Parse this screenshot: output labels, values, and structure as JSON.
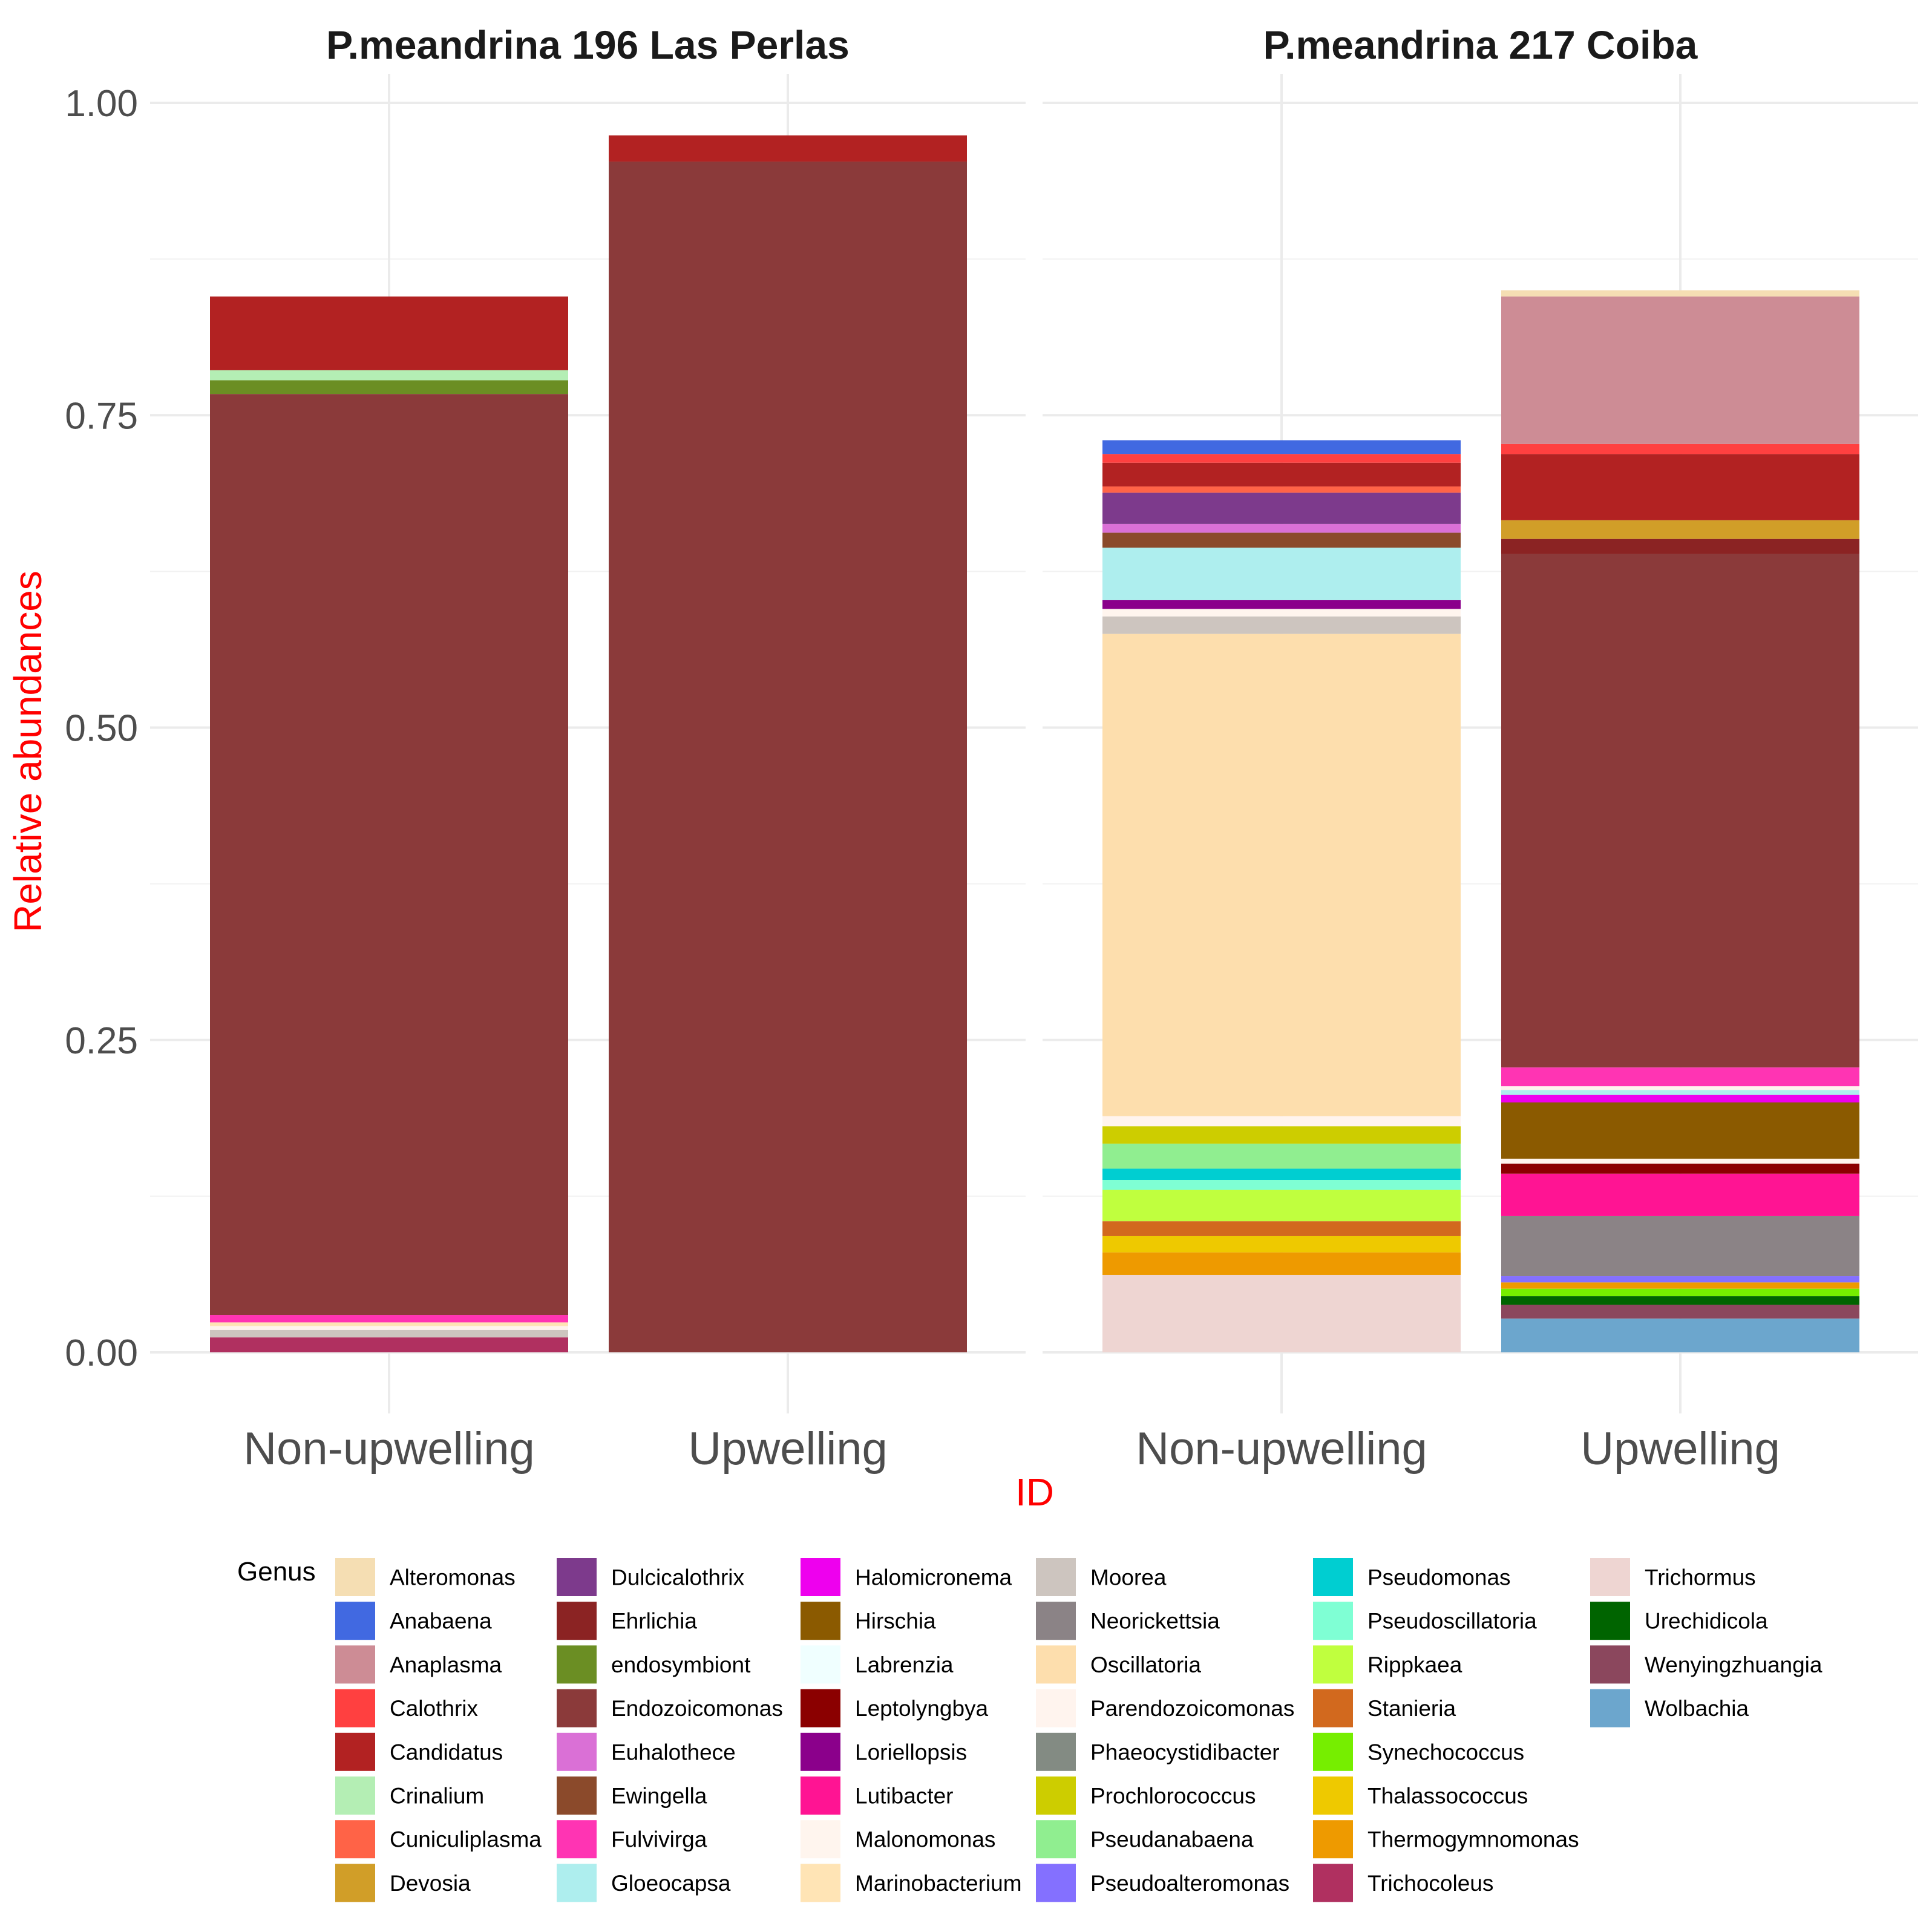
{
  "chart_data": {
    "type": "bar",
    "stacked": true,
    "ylabel": "Relative abundances",
    "xlabel": "ID",
    "ylim": [
      0,
      1.0
    ],
    "yticks": [
      "0.00",
      "0.25",
      "0.50",
      "0.75",
      "1.00"
    ],
    "categories": [
      "Non-upwelling",
      "Upwelling"
    ],
    "grid": true,
    "legend_position": "bottom",
    "legend_title": "Genus",
    "facets": [
      {
        "title": "P.meandrina 196 Las Perlas",
        "bars": [
          {
            "category": "Non-upwelling",
            "segments": [
              {
                "genus": "Trichocoleus",
                "value": 0.012
              },
              {
                "genus": "Moorea",
                "value": 0.006
              },
              {
                "genus": "Parendozoicomonas",
                "value": 0.003
              },
              {
                "genus": "Marinobacterium",
                "value": 0.003
              },
              {
                "genus": "Fulvivirga",
                "value": 0.006
              },
              {
                "genus": "Endozoicomonas",
                "value": 0.737
              },
              {
                "genus": "endosymbiont",
                "value": 0.011
              },
              {
                "genus": "Crinalium",
                "value": 0.008
              },
              {
                "genus": "Candidatus",
                "value": 0.059
              }
            ]
          },
          {
            "category": "Upwelling",
            "segments": [
              {
                "genus": "Endozoicomonas",
                "value": 0.953
              },
              {
                "genus": "Candidatus",
                "value": 0.021
              }
            ]
          }
        ]
      },
      {
        "title": "P.meandrina 217 Coiba",
        "bars": [
          {
            "category": "Non-upwelling",
            "segments": [
              {
                "genus": "Trichormus",
                "value": 0.062
              },
              {
                "genus": "Thermogymnomonas",
                "value": 0.018
              },
              {
                "genus": "Thalassococcus",
                "value": 0.013
              },
              {
                "genus": "Stanieria",
                "value": 0.012
              },
              {
                "genus": "Rippkaea",
                "value": 0.025
              },
              {
                "genus": "Pseudoscillatoria",
                "value": 0.008
              },
              {
                "genus": "Pseudomonas",
                "value": 0.009
              },
              {
                "genus": "Pseudanabaena",
                "value": 0.02
              },
              {
                "genus": "Prochlorococcus",
                "value": 0.014
              },
              {
                "genus": "Parendozoicomonas",
                "value": 0.008
              },
              {
                "genus": "Oscillatoria",
                "value": 0.386
              },
              {
                "genus": "Moorea",
                "value": 0.014
              },
              {
                "genus": "Malonomonas",
                "value": 0.006
              },
              {
                "genus": "Loriellopsis",
                "value": 0.007
              },
              {
                "genus": "Gloeocapsa",
                "value": 0.042
              },
              {
                "genus": "Ewingella",
                "value": 0.012
              },
              {
                "genus": "Euhalothece",
                "value": 0.007
              },
              {
                "genus": "Dulcicalothrix",
                "value": 0.025
              },
              {
                "genus": "Cuniculiplasma",
                "value": 0.005
              },
              {
                "genus": "Candidatus",
                "value": 0.019
              },
              {
                "genus": "Calothrix",
                "value": 0.007
              },
              {
                "genus": "Anabaena",
                "value": 0.011
              }
            ]
          },
          {
            "category": "Upwelling",
            "segments": [
              {
                "genus": "Wolbachia",
                "value": 0.027
              },
              {
                "genus": "Wenyingzhuangia",
                "value": 0.011
              },
              {
                "genus": "Urechidicola",
                "value": 0.007
              },
              {
                "genus": "Synechococcus",
                "value": 0.006
              },
              {
                "genus": "Thermogymnomonas",
                "value": 0.005
              },
              {
                "genus": "Pseudoalteromonas",
                "value": 0.005
              },
              {
                "genus": "Neorickettsia",
                "value": 0.048
              },
              {
                "genus": "Lutibacter",
                "value": 0.034
              },
              {
                "genus": "Leptolyngbya",
                "value": 0.008
              },
              {
                "genus": "Malonomonas",
                "value": 0.004
              },
              {
                "genus": "Hirschia",
                "value": 0.045
              },
              {
                "genus": "Halomicronema",
                "value": 0.006
              },
              {
                "genus": "Gloeocapsa",
                "value": 0.004
              },
              {
                "genus": "Parendozoicomonas",
                "value": 0.003
              },
              {
                "genus": "Fulvivirga",
                "value": 0.015
              },
              {
                "genus": "Endozoicomonas",
                "value": 0.411
              },
              {
                "genus": "Ehrlichia",
                "value": 0.012
              },
              {
                "genus": "Devosia",
                "value": 0.015
              },
              {
                "genus": "Candidatus",
                "value": 0.053
              },
              {
                "genus": "Calothrix",
                "value": 0.008
              },
              {
                "genus": "Anaplasma",
                "value": 0.118
              },
              {
                "genus": "Alteromonas",
                "value": 0.005
              }
            ]
          }
        ]
      }
    ],
    "legend": [
      {
        "genus": "Alteromonas",
        "color": "#F5DEB3"
      },
      {
        "genus": "Anabaena",
        "color": "#4169E1"
      },
      {
        "genus": "Anaplasma",
        "color": "#CD8C95"
      },
      {
        "genus": "Calothrix",
        "color": "#FF4040"
      },
      {
        "genus": "Candidatus",
        "color": "#B22222"
      },
      {
        "genus": "Crinalium",
        "color": "#B4EEB4"
      },
      {
        "genus": "Cuniculiplasma",
        "color": "#FF6347"
      },
      {
        "genus": "Devosia",
        "color": "#D19E28"
      },
      {
        "genus": "Dulcicalothrix",
        "color": "#7D3A8C"
      },
      {
        "genus": "Ehrlichia",
        "color": "#8B2323"
      },
      {
        "genus": "endosymbiont",
        "color": "#6B8E23"
      },
      {
        "genus": "Endozoicomonas",
        "color": "#8B3A3A"
      },
      {
        "genus": "Euhalothece",
        "color": "#DA70D6"
      },
      {
        "genus": "Ewingella",
        "color": "#8B4A2B"
      },
      {
        "genus": "Fulvivirga",
        "color": "#FF34B3"
      },
      {
        "genus": "Gloeocapsa",
        "color": "#AEEEEE"
      },
      {
        "genus": "Halomicronema",
        "color": "#EE00EE"
      },
      {
        "genus": "Hirschia",
        "color": "#8B5A00"
      },
      {
        "genus": "Labrenzia",
        "color": "#F0FFFF"
      },
      {
        "genus": "Leptolyngbya",
        "color": "#8B0000"
      },
      {
        "genus": "Loriellopsis",
        "color": "#8B008B"
      },
      {
        "genus": "Lutibacter",
        "color": "#FF1493"
      },
      {
        "genus": "Malonomonas",
        "color": "#FFF5EE"
      },
      {
        "genus": "Marinobacterium",
        "color": "#FFE4B5"
      },
      {
        "genus": "Moorea",
        "color": "#CDC5BF"
      },
      {
        "genus": "Neorickettsia",
        "color": "#8B8386"
      },
      {
        "genus": "Oscillatoria",
        "color": "#FDDEAD"
      },
      {
        "genus": "Parendozoicomonas",
        "color": "#FFF4EE"
      },
      {
        "genus": "Phaeocystidibacter",
        "color": "#838B83"
      },
      {
        "genus": "Prochlorococcus",
        "color": "#CDCD00"
      },
      {
        "genus": "Pseudanabaena",
        "color": "#90EE90"
      },
      {
        "genus": "Pseudoalteromonas",
        "color": "#8470FF"
      },
      {
        "genus": "Pseudomonas",
        "color": "#00CED1"
      },
      {
        "genus": "Pseudoscillatoria",
        "color": "#7FFFD4"
      },
      {
        "genus": "Rippkaea",
        "color": "#C0FF3E"
      },
      {
        "genus": "Stanieria",
        "color": "#D2691E"
      },
      {
        "genus": "Synechococcus",
        "color": "#76EE00"
      },
      {
        "genus": "Thalassococcus",
        "color": "#EEC900"
      },
      {
        "genus": "Thermogymnomonas",
        "color": "#EE9A00"
      },
      {
        "genus": "Trichocoleus",
        "color": "#B03060"
      },
      {
        "genus": "Trichormus",
        "color": "#EED5D2"
      },
      {
        "genus": "Urechidicola",
        "color": "#006400"
      },
      {
        "genus": "Wenyingzhuangia",
        "color": "#8B475D"
      },
      {
        "genus": "Wolbachia",
        "color": "#6CA6CD"
      }
    ]
  }
}
